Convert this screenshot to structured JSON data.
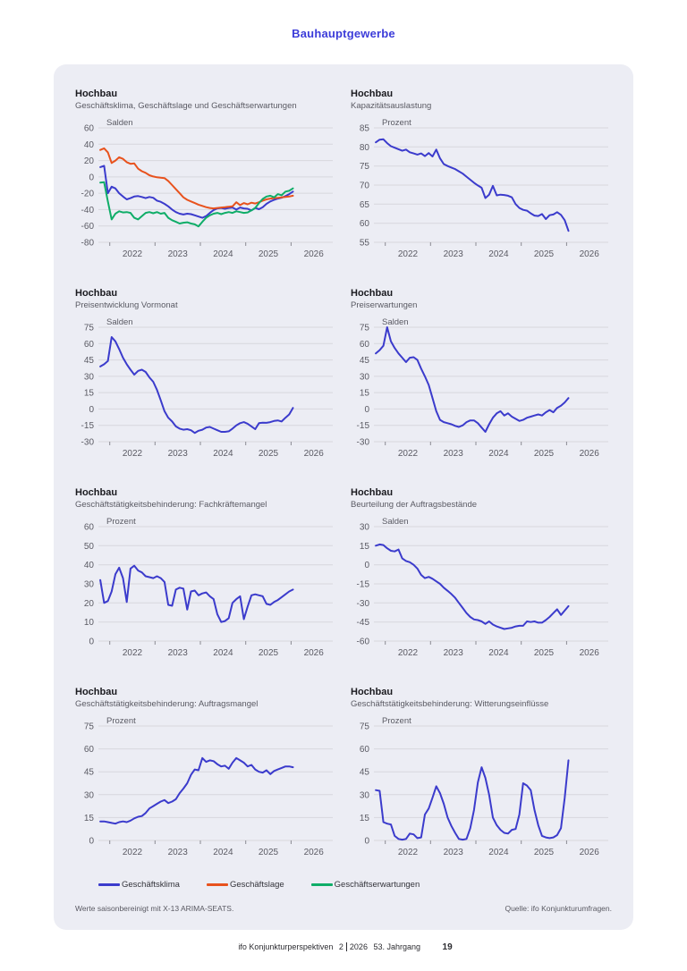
{
  "page": {
    "title": "Bauhauptgewerbe",
    "notes": {
      "left": "Werte saisonbereinigt mit X-13 ARIMA-SEATS.",
      "right": "Quelle: ifo Konjunkturumfragen."
    },
    "footer": {
      "publication": "ifo Konjunkturperspektiven",
      "issue": "2",
      "year": "2026",
      "volume": "53. Jahrgang",
      "page_number": "19"
    }
  },
  "colors": {
    "accent_title": "#3C3CD9",
    "panel_bg": "#ECEDF4",
    "klima_blue": "#3B3BCC",
    "lage_orange": "#E8521D",
    "erwartungen_green": "#0FAD68"
  },
  "legend": [
    {
      "label": "Geschäftsklima",
      "color": "#3B3BCC"
    },
    {
      "label": "Geschäftslage",
      "color": "#E8521D"
    },
    {
      "label": "Geschäftserwartungen",
      "color": "#0FAD68"
    }
  ],
  "chart_data": [
    {
      "type": "line",
      "title": "Hochbau",
      "subtitle": "Geschäftsklima, Geschäftslage und Geschäftserwartungen",
      "unit": "Salden",
      "ylim": [
        -80,
        60
      ],
      "yticks": [
        60,
        40,
        20,
        0,
        -20,
        -40,
        -60,
        -80
      ],
      "xticks": [
        2022,
        2023,
        2024,
        2025,
        2026
      ],
      "x_domain": [
        2021.75,
        2026.92
      ],
      "x_start": 2021.792,
      "x_step": 0.083333,
      "grid": true,
      "legend_position": "bottom",
      "series": [
        {
          "name": "Geschäftsklima",
          "color": "#3B3BCC",
          "values": [
            12,
            13.5,
            -20,
            -12,
            -14,
            -20,
            -24,
            -27.5,
            -26,
            -24,
            -23.5,
            -24.5,
            -26,
            -24.5,
            -25.5,
            -29,
            -30.5,
            -33,
            -36,
            -40,
            -43,
            -45,
            -46,
            -45,
            -45.5,
            -47,
            -48.5,
            -50,
            -48,
            -44,
            -40.5,
            -38.5,
            -38,
            -39,
            -38,
            -37.5,
            -40,
            -37.5,
            -38.5,
            -39,
            -41,
            -38,
            -39.5,
            -37,
            -33,
            -30,
            -28,
            -26.5,
            -25.5,
            -23.5,
            -21,
            -18
          ]
        },
        {
          "name": "Geschäftslage",
          "color": "#E8521D",
          "values": [
            33,
            35,
            30,
            17,
            20,
            24,
            22,
            18,
            16,
            16.5,
            10,
            7,
            5,
            2,
            0.5,
            -0.5,
            -1,
            -1.5,
            -5,
            -10,
            -15,
            -20,
            -25,
            -28,
            -30,
            -32,
            -34,
            -35.5,
            -37,
            -38,
            -38.5,
            -38,
            -37.5,
            -37,
            -36.5,
            -36,
            -31,
            -34.5,
            -32,
            -33.5,
            -31.5,
            -32.5,
            -31,
            -29,
            -27.5,
            -26.5,
            -26,
            -25.5,
            -25,
            -24.5,
            -24,
            -23
          ]
        },
        {
          "name": "Geschäftserwartungen",
          "color": "#0FAD68",
          "values": [
            -7,
            -6.5,
            -30,
            -52,
            -45,
            -42,
            -43.5,
            -43,
            -44,
            -50,
            -52,
            -48,
            -44,
            -43,
            -44.5,
            -43,
            -45,
            -44,
            -50,
            -53,
            -55,
            -57,
            -56,
            -55.5,
            -57,
            -58,
            -60.5,
            -55,
            -50,
            -47,
            -45,
            -44,
            -45.5,
            -44,
            -43,
            -44,
            -42,
            -43,
            -44,
            -43.5,
            -41,
            -38,
            -32,
            -27,
            -24,
            -23,
            -25,
            -21,
            -22.5,
            -18,
            -17,
            -14
          ]
        }
      ]
    },
    {
      "type": "line",
      "title": "Hochbau",
      "subtitle": "Kapazitätsauslastung",
      "unit": "Prozent",
      "ylim": [
        55,
        85
      ],
      "yticks": [
        85,
        80,
        75,
        70,
        65,
        60,
        55
      ],
      "xticks": [
        2022,
        2023,
        2024,
        2025,
        2026
      ],
      "x_domain": [
        2021.75,
        2026.92
      ],
      "x_start": 2021.792,
      "x_step": 0.083333,
      "grid": true,
      "series": [
        {
          "name": "Kapazitätsauslastung",
          "color": "#3B3BCC",
          "values": [
            81.2,
            81.9,
            82,
            81,
            80.2,
            79.8,
            79.4,
            79,
            79.3,
            78.6,
            78.3,
            78,
            78.3,
            77.6,
            78.4,
            77.5,
            79.3,
            77,
            75.5,
            75,
            74.6,
            74.2,
            73.6,
            73,
            72.2,
            71.4,
            70.6,
            69.9,
            69.3,
            66.6,
            67.5,
            69.8,
            67.3,
            67.5,
            67.4,
            67.2,
            66.8,
            65,
            64,
            63.5,
            63.3,
            62.6,
            62,
            61.9,
            62.4,
            61.1,
            62.1,
            62.3,
            62.9,
            62.2,
            60.8,
            58
          ]
        }
      ]
    },
    {
      "type": "line",
      "title": "Hochbau",
      "subtitle": "Preisentwicklung Vormonat",
      "unit": "Salden",
      "ylim": [
        -30,
        75
      ],
      "yticks": [
        75,
        60,
        45,
        30,
        15,
        0,
        -15,
        -30
      ],
      "xticks": [
        2022,
        2023,
        2024,
        2025,
        2026
      ],
      "x_domain": [
        2021.75,
        2026.92
      ],
      "x_start": 2021.792,
      "x_step": 0.083333,
      "grid": true,
      "series": [
        {
          "name": "Preisentwicklung Vormonat",
          "color": "#3B3BCC",
          "values": [
            39,
            41,
            44,
            66,
            62,
            55,
            47,
            41,
            36,
            31.5,
            35,
            36,
            34,
            29,
            25,
            17.5,
            8,
            -2,
            -8,
            -11.5,
            -16,
            -18,
            -19,
            -18.5,
            -19.5,
            -22,
            -20,
            -19,
            -17,
            -16.5,
            -18,
            -19.5,
            -21,
            -21,
            -20.5,
            -18,
            -15,
            -13,
            -12,
            -13.5,
            -16,
            -18.5,
            -13,
            -12.5,
            -12.7,
            -12,
            -11,
            -10.5,
            -11.5,
            -8,
            -5,
            1
          ]
        }
      ]
    },
    {
      "type": "line",
      "title": "Hochbau",
      "subtitle": "Preiserwartungen",
      "unit": "Salden",
      "ylim": [
        -30,
        75
      ],
      "yticks": [
        75,
        60,
        45,
        30,
        15,
        0,
        -15,
        -30
      ],
      "xticks": [
        2022,
        2023,
        2024,
        2025,
        2026
      ],
      "x_domain": [
        2021.75,
        2026.92
      ],
      "x_start": 2021.792,
      "x_step": 0.083333,
      "grid": true,
      "series": [
        {
          "name": "Preiserwartungen",
          "color": "#3B3BCC",
          "values": [
            51,
            54,
            58,
            75,
            62,
            56,
            51,
            47,
            43,
            47,
            47.5,
            45,
            37,
            30,
            22,
            10,
            -2,
            -10,
            -12,
            -13,
            -14,
            -15.5,
            -16.5,
            -15,
            -12,
            -10.5,
            -10.5,
            -13,
            -17,
            -21,
            -14,
            -8,
            -4,
            -2,
            -6,
            -4,
            -7,
            -9,
            -11,
            -10,
            -8,
            -7,
            -6,
            -5,
            -6,
            -3,
            -1,
            -3,
            1,
            3,
            6,
            10
          ]
        }
      ]
    },
    {
      "type": "line",
      "title": "Hochbau",
      "subtitle": "Geschäftstätigkeitsbehinderung: Fachkräftemangel",
      "unit": "Prozent",
      "ylim": [
        0,
        60
      ],
      "yticks": [
        60,
        50,
        40,
        30,
        20,
        10,
        0
      ],
      "xticks": [
        2022,
        2023,
        2024,
        2025,
        2026
      ],
      "x_domain": [
        2021.75,
        2026.92
      ],
      "x_start": 2021.792,
      "x_step": 0.083333,
      "grid": true,
      "series": [
        {
          "name": "Fachkräftemangel",
          "color": "#3B3BCC",
          "values": [
            32,
            20,
            21,
            26,
            35,
            38.5,
            33,
            20.5,
            38,
            39.5,
            37,
            36,
            34,
            33.5,
            33,
            34,
            33,
            31,
            19,
            18.5,
            27,
            28,
            27.5,
            16.5,
            26,
            26.5,
            24,
            25,
            25.5,
            23.5,
            22,
            14,
            10,
            10.5,
            12,
            20,
            22,
            23.5,
            11.5,
            18,
            24,
            24.5,
            24,
            23.5,
            19.5,
            19,
            20.5,
            21.5,
            23,
            24.5,
            26,
            27
          ]
        }
      ]
    },
    {
      "type": "line",
      "title": "Hochbau",
      "subtitle": "Beurteilung der Auftragsbestände",
      "unit": "Salden",
      "ylim": [
        -60,
        30
      ],
      "yticks": [
        30,
        15,
        0,
        -15,
        -30,
        -45,
        -60
      ],
      "xticks": [
        2022,
        2023,
        2024,
        2025,
        2026
      ],
      "x_domain": [
        2021.75,
        2026.92
      ],
      "x_start": 2021.792,
      "x_step": 0.083333,
      "grid": true,
      "series": [
        {
          "name": "Beurteilung der Auftragsbestände",
          "color": "#3B3BCC",
          "values": [
            15,
            16,
            15.5,
            13,
            11,
            10.5,
            12,
            5,
            3,
            2,
            0,
            -3,
            -8,
            -10.5,
            -9.5,
            -11,
            -13,
            -15,
            -18,
            -20.5,
            -23,
            -26,
            -30,
            -34,
            -38,
            -41,
            -43,
            -43.5,
            -44.5,
            -46.5,
            -44.5,
            -47,
            -48.5,
            -49.5,
            -50.5,
            -50,
            -49.5,
            -48.5,
            -48,
            -48,
            -44.5,
            -45,
            -44.5,
            -45.5,
            -45.5,
            -43.5,
            -41,
            -38,
            -35,
            -39.5,
            -36,
            -32.5
          ]
        }
      ]
    },
    {
      "type": "line",
      "title": "Hochbau",
      "subtitle": "Geschäftstätigkeitsbehinderung: Auftragsmangel",
      "unit": "Prozent",
      "ylim": [
        0,
        75
      ],
      "yticks": [
        75,
        60,
        45,
        30,
        15,
        0
      ],
      "xticks": [
        2022,
        2023,
        2024,
        2025,
        2026
      ],
      "x_domain": [
        2021.75,
        2026.92
      ],
      "x_start": 2021.792,
      "x_step": 0.083333,
      "grid": true,
      "series": [
        {
          "name": "Auftragsmangel",
          "color": "#3B3BCC",
          "values": [
            12.5,
            12.5,
            12,
            11.5,
            11,
            12,
            12.5,
            12,
            13,
            14.5,
            15.5,
            16,
            18,
            21,
            22.5,
            24,
            25.5,
            26.5,
            24.5,
            25.5,
            27,
            31,
            34,
            37.5,
            43,
            46.5,
            46,
            54,
            51.5,
            52.5,
            52,
            50,
            48.5,
            49,
            47,
            51,
            54,
            52.5,
            51,
            48.5,
            49.5,
            46.5,
            45,
            44.5,
            46,
            43.5,
            45.5,
            46.5,
            47.5,
            48.5,
            48.5,
            48
          ]
        }
      ]
    },
    {
      "type": "line",
      "title": "Hochbau",
      "subtitle": "Geschäftstätigkeitsbehinderung: Witterungseinflüsse",
      "unit": "Prozent",
      "ylim": [
        0,
        75
      ],
      "yticks": [
        75,
        60,
        45,
        30,
        15,
        0
      ],
      "xticks": [
        2022,
        2023,
        2024,
        2025,
        2026
      ],
      "x_domain": [
        2021.75,
        2026.92
      ],
      "x_start": 2021.792,
      "x_step": 0.083333,
      "grid": true,
      "series": [
        {
          "name": "Witterungseinflüsse",
          "color": "#3B3BCC",
          "values": [
            33,
            32.5,
            12,
            11,
            10.5,
            3,
            1,
            0.5,
            1,
            4.5,
            4,
            1.5,
            2,
            17,
            21,
            28,
            35.5,
            31,
            24,
            15,
            9.5,
            5,
            1,
            0.5,
            1,
            8,
            20,
            38,
            48,
            41,
            30,
            15,
            10,
            7,
            5,
            4.5,
            7,
            7.5,
            17,
            37.5,
            36,
            33,
            20,
            10,
            3,
            2,
            1.5,
            2,
            3.5,
            8,
            28,
            52.5
          ]
        }
      ]
    }
  ]
}
